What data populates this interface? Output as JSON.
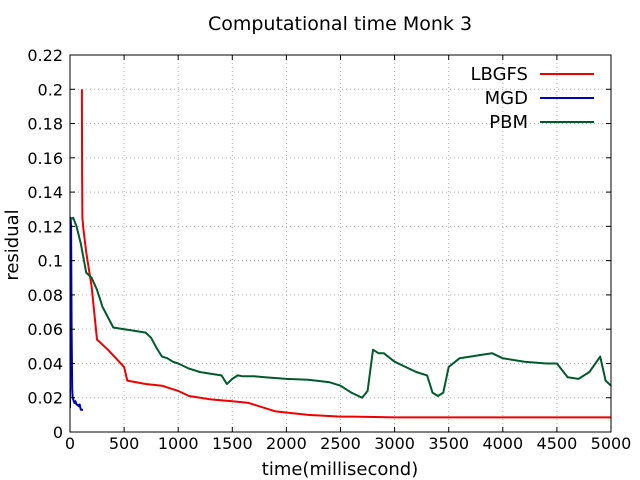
{
  "chart_data": {
    "type": "line",
    "title": "Computational time Monk 3",
    "xlabel": "time(millisecond)",
    "ylabel": "residual",
    "xlim": [
      0,
      5000
    ],
    "ylim": [
      0,
      0.22
    ],
    "xticks": [
      0,
      500,
      1000,
      1500,
      2000,
      2500,
      3000,
      3500,
      4000,
      4500,
      5000
    ],
    "yticks": [
      0,
      0.02,
      0.04,
      0.06,
      0.08,
      0.1,
      0.12,
      0.14,
      0.16,
      0.18,
      0.2,
      0.22
    ],
    "xtick_labels": [
      "0",
      "500",
      "1000",
      "1500",
      "2000",
      "2500",
      "3000",
      "3500",
      "4000",
      "4500",
      "5000"
    ],
    "ytick_labels": [
      "0",
      "0.02",
      "0.04",
      "0.06",
      "0.08",
      "0.1",
      "0.12",
      "0.14",
      "0.16",
      "0.18",
      "0.2",
      "0.22"
    ],
    "grid": true,
    "legend_position": "top-right",
    "series": [
      {
        "name": "LBGFS",
        "color": "#ee0000",
        "x": [
          110,
          112,
          115,
          125,
          150,
          200,
          250,
          350,
          500,
          530,
          700,
          850,
          1000,
          1100,
          1300,
          1500,
          1650,
          1900,
          2200,
          2500,
          2600,
          3000,
          3500,
          4000,
          4500,
          5000
        ],
        "y": [
          0.2,
          0.15,
          0.125,
          0.118,
          0.105,
          0.085,
          0.054,
          0.048,
          0.038,
          0.03,
          0.028,
          0.027,
          0.024,
          0.021,
          0.019,
          0.018,
          0.017,
          0.012,
          0.01,
          0.009,
          0.009,
          0.0085,
          0.0085,
          0.0085,
          0.0085,
          0.0085
        ]
      },
      {
        "name": "MGD",
        "color": "#0000bb",
        "x": [
          0,
          5,
          10,
          15,
          20,
          25,
          30,
          35,
          40,
          50,
          60,
          70,
          80,
          90,
          100,
          110,
          120
        ],
        "y": [
          0.014,
          0.125,
          0.12,
          0.06,
          0.025,
          0.02,
          0.019,
          0.018,
          0.017,
          0.018,
          0.016,
          0.016,
          0.015,
          0.016,
          0.013,
          0.013,
          0.013
        ]
      },
      {
        "name": "PBM",
        "color": "#005a2c",
        "x": [
          0,
          30,
          60,
          100,
          150,
          200,
          250,
          300,
          400,
          500,
          600,
          700,
          750,
          800,
          850,
          900,
          950,
          1000,
          1100,
          1200,
          1300,
          1400,
          1450,
          1500,
          1550,
          1600,
          1700,
          1800,
          2000,
          2200,
          2400,
          2500,
          2600,
          2700,
          2750,
          2800,
          2850,
          2900,
          3000,
          3100,
          3200,
          3300,
          3350,
          3400,
          3450,
          3500,
          3600,
          3700,
          3800,
          3900,
          4000,
          4200,
          4400,
          4500,
          4600,
          4700,
          4800,
          4900,
          4950,
          5000
        ],
        "y": [
          0.124,
          0.125,
          0.12,
          0.11,
          0.093,
          0.09,
          0.083,
          0.073,
          0.061,
          0.06,
          0.059,
          0.058,
          0.055,
          0.049,
          0.044,
          0.043,
          0.041,
          0.04,
          0.037,
          0.035,
          0.034,
          0.033,
          0.028,
          0.031,
          0.033,
          0.0325,
          0.0325,
          0.032,
          0.031,
          0.0305,
          0.029,
          0.027,
          0.023,
          0.02,
          0.024,
          0.048,
          0.046,
          0.046,
          0.041,
          0.038,
          0.035,
          0.033,
          0.023,
          0.021,
          0.023,
          0.038,
          0.043,
          0.044,
          0.045,
          0.046,
          0.043,
          0.041,
          0.04,
          0.04,
          0.032,
          0.031,
          0.035,
          0.044,
          0.03,
          0.027
        ]
      }
    ]
  }
}
